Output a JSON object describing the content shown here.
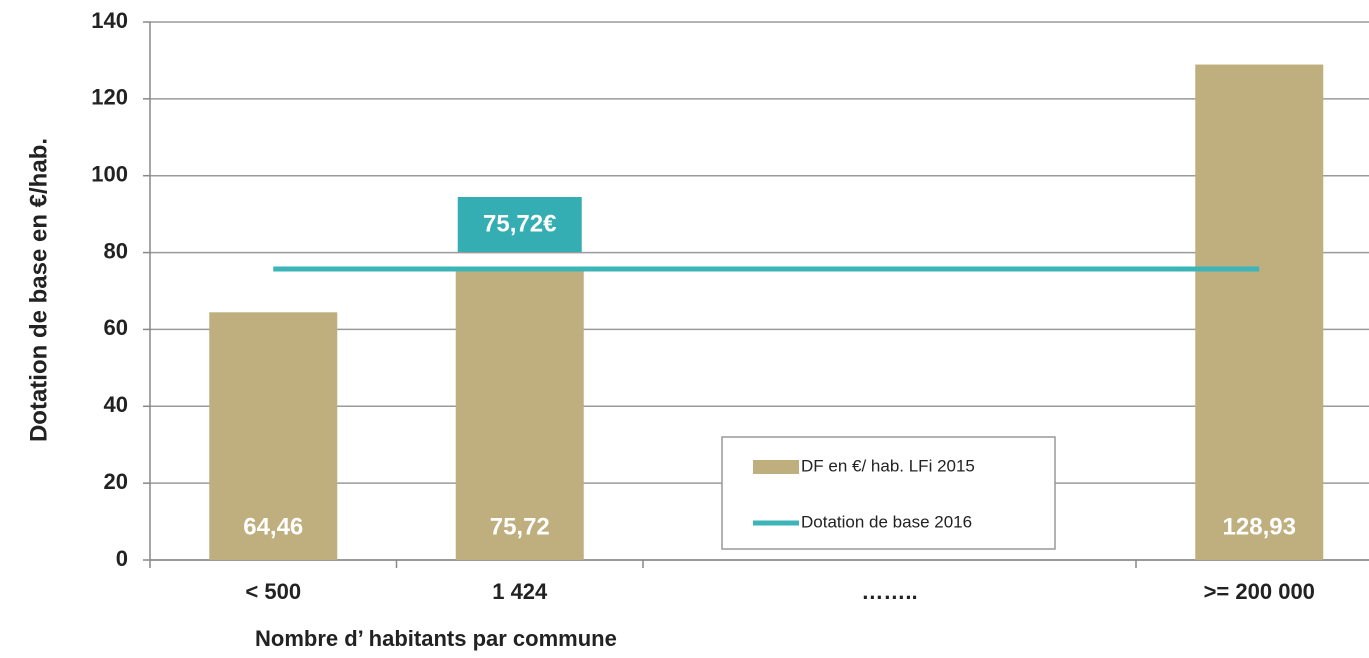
{
  "chart_data": {
    "type": "bar",
    "categories": [
      "< 500",
      "1 424",
      "……..",
      ">= 200 000"
    ],
    "series": [
      {
        "name": "DF en €/ hab. LFi 2015",
        "color": "#bfae7e",
        "type": "bar",
        "values": [
          64.46,
          75.72,
          null,
          128.93
        ],
        "value_labels": [
          "64,46",
          "75,72",
          null,
          "128,93"
        ]
      },
      {
        "name": "Dotation de base 2016",
        "color": "#3cb5b9",
        "type": "line",
        "values": [
          75.72,
          75.72,
          75.72,
          75.72
        ]
      }
    ],
    "annotation": "75,72€",
    "y_label": "Dotation de base  en €/hab.",
    "x_label": "Nombre d’ habitants par commune",
    "ylim": [
      0,
      140
    ],
    "yticks": [
      0,
      20,
      40,
      60,
      80,
      100,
      120,
      140
    ],
    "grid": true
  }
}
